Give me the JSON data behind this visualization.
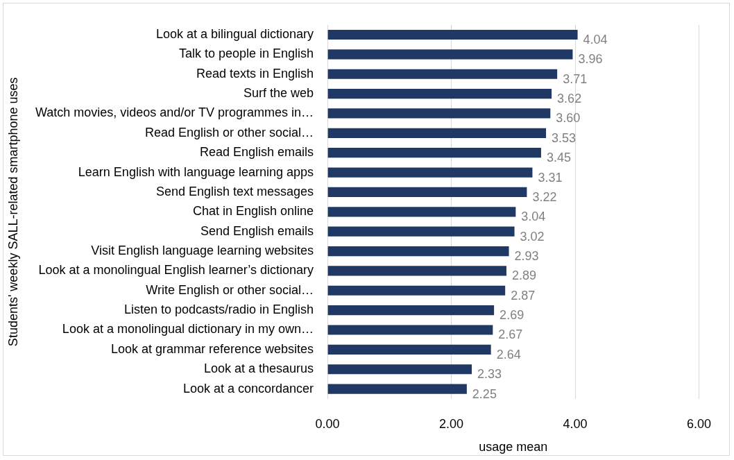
{
  "chart_data": {
    "type": "bar",
    "orientation": "horizontal",
    "ylabel": "Students' weekly SALL-related smartphone uses",
    "xlabel": "usage mean",
    "categories": [
      "Look at a bilingual dictionary",
      "Talk to people in English",
      "Read texts in English",
      "Surf the web",
      "Watch movies, videos and/or TV programmes in…",
      "Read English or other social…",
      "Read English emails",
      "Learn English with language learning apps",
      "Send English text messages",
      "Chat in English online",
      "Send English emails",
      "Visit English language learning websites",
      "Look at a monolingual English learner’s dictionary",
      "Write English or other social…",
      "Listen to podcasts/radio in English",
      "Look at a monolingual dictionary in my own…",
      "Look at grammar reference websites",
      "Look at a thesaurus",
      "Look at a concordancer"
    ],
    "values": [
      4.04,
      3.96,
      3.71,
      3.62,
      3.6,
      3.53,
      3.45,
      3.31,
      3.22,
      3.04,
      3.02,
      2.93,
      2.89,
      2.87,
      2.69,
      2.67,
      2.64,
      2.33,
      2.25
    ],
    "value_labels": [
      "4.04",
      "3.96",
      "3.71",
      "3.62",
      "3.60",
      "3.53",
      "3.45",
      "3.31",
      "3.22",
      "3.04",
      "3.02",
      "2.93",
      "2.89",
      "2.87",
      "2.69",
      "2.67",
      "2.64",
      "2.33",
      "2.25"
    ],
    "color": "#203864",
    "xlim": [
      0,
      6
    ],
    "xticks": [
      {
        "value": 0,
        "label": "0.00"
      },
      {
        "value": 2,
        "label": "2.00"
      },
      {
        "value": 4,
        "label": "4.00"
      },
      {
        "value": 6,
        "label": "6.00"
      }
    ],
    "grid": "x"
  }
}
